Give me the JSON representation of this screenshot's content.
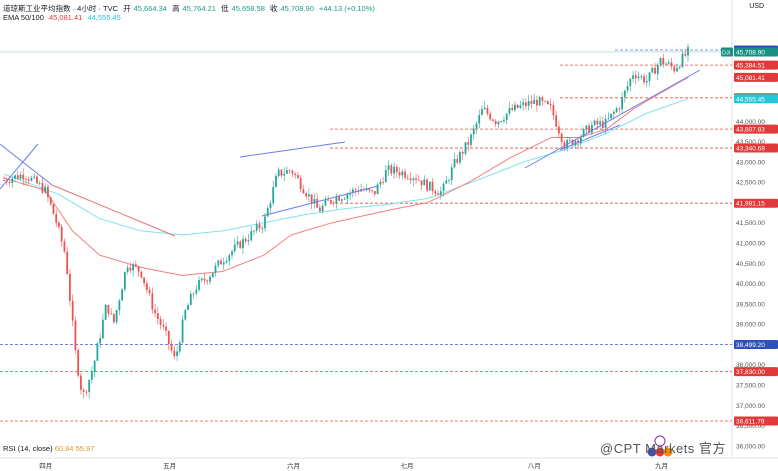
{
  "header": {
    "symbol_line": "道琼斯工业平均指数 · 4小时 · TVC",
    "open_label": "开",
    "open": "45,664.34",
    "high_label": "高",
    "high": "45,764.21",
    "low_label": "低",
    "low": "45,658.58",
    "close_label": "收",
    "close": "45,708.90",
    "change": "+44.13 (+0.10%)",
    "ema_label": "EMA 50/100",
    "ema50": "45,081.41",
    "ema100": "44,555.45"
  },
  "currency": "USD",
  "rsi": {
    "label": "RSI (14, close)",
    "v1": "60.84",
    "v2": "55.97"
  },
  "watermark": "@CPT Markets 官方",
  "colors": {
    "up": "#26a69a",
    "down": "#ef5350",
    "ema50": "#f08080",
    "ema100": "#7fe3ec",
    "trend": "#6c7ee8",
    "level": "#e74c3c"
  },
  "chart_data": {
    "type": "candlestick",
    "x_ticks": [
      "四月",
      "五月",
      "六月",
      "七月",
      "八月",
      "九月"
    ],
    "y_ticks": [
      44000,
      43500,
      43000,
      42500,
      42000,
      41500,
      41000,
      40500,
      40000,
      39500,
      39000,
      38500,
      38000,
      37500,
      37000,
      36500,
      36000
    ],
    "y_tick_labels": [
      "44,000.00",
      "43,500.00",
      "43,000.00",
      "42,500.00",
      "42,000.00",
      "41,500.00",
      "41,000.00",
      "40,500.00",
      "40,000.00",
      "39,500.00",
      "39,000.00",
      "38,500.00",
      "38,000.00",
      "37,500.00",
      "37,000.00",
      "36,500.00",
      "36,000.00"
    ],
    "ylim": [
      35700,
      46300
    ],
    "price_levels": [
      {
        "value": 45757.85,
        "label": "45,757.85",
        "style": "blue"
      },
      {
        "value": 45708.9,
        "label": "45,708.90",
        "style": "current",
        "tag": "DJI"
      },
      {
        "value": 45384.51,
        "label": "45,384.51",
        "style": "red"
      },
      {
        "value": 45081.41,
        "label": "45,081.41",
        "style": "ema50"
      },
      {
        "value": 44579.2,
        "label": "44,579.20",
        "style": "red"
      },
      {
        "value": 44555.45,
        "label": "44,555.45",
        "style": "ema100"
      },
      {
        "value": 43807.83,
        "label": "43,807.83",
        "style": "red"
      },
      {
        "value": 43340.69,
        "label": "43,340.69",
        "style": "red"
      },
      {
        "value": 41981.15,
        "label": "41,981.15",
        "style": "red"
      },
      {
        "value": 38499.2,
        "label": "38,499.20",
        "style": "blue"
      },
      {
        "value": 37830.0,
        "label": "37,830.00",
        "style": "red"
      },
      {
        "value": 36611.79,
        "label": "36,611.79",
        "style": "red"
      }
    ],
    "close_path": [
      [
        0,
        42550
      ],
      [
        0.03,
        42700
      ],
      [
        0.06,
        42300
      ],
      [
        0.075,
        41600
      ],
      [
        0.09,
        40700
      ],
      [
        0.105,
        38200
      ],
      [
        0.115,
        37200
      ],
      [
        0.13,
        37900
      ],
      [
        0.15,
        39500
      ],
      [
        0.16,
        39000
      ],
      [
        0.18,
        40500
      ],
      [
        0.2,
        40300
      ],
      [
        0.22,
        39300
      ],
      [
        0.235,
        38800
      ],
      [
        0.25,
        38100
      ],
      [
        0.265,
        39300
      ],
      [
        0.28,
        39900
      ],
      [
        0.3,
        40200
      ],
      [
        0.32,
        40600
      ],
      [
        0.34,
        40900
      ],
      [
        0.36,
        41200
      ],
      [
        0.38,
        41500
      ],
      [
        0.4,
        42700
      ],
      [
        0.42,
        42800
      ],
      [
        0.44,
        42300
      ],
      [
        0.46,
        41800
      ],
      [
        0.48,
        42100
      ],
      [
        0.5,
        42200
      ],
      [
        0.52,
        42350
      ],
      [
        0.54,
        42200
      ],
      [
        0.56,
        42800
      ],
      [
        0.58,
        42750
      ],
      [
        0.6,
        42650
      ],
      [
        0.62,
        42400
      ],
      [
        0.64,
        42250
      ],
      [
        0.66,
        43000
      ],
      [
        0.68,
        43500
      ],
      [
        0.7,
        44300
      ],
      [
        0.72,
        44000
      ],
      [
        0.74,
        44250
      ],
      [
        0.76,
        44400
      ],
      [
        0.78,
        44500
      ],
      [
        0.8,
        44300
      ],
      [
        0.82,
        43400
      ],
      [
        0.84,
        43600
      ],
      [
        0.86,
        43900
      ],
      [
        0.88,
        43950
      ],
      [
        0.9,
        44400
      ],
      [
        0.92,
        45200
      ],
      [
        0.94,
        45000
      ],
      [
        0.96,
        45500
      ],
      [
        0.98,
        45300
      ],
      [
        1.0,
        45709
      ]
    ],
    "ema50": [
      [
        0,
        42600
      ],
      [
        0.06,
        42300
      ],
      [
        0.1,
        41300
      ],
      [
        0.14,
        40700
      ],
      [
        0.2,
        40400
      ],
      [
        0.26,
        40200
      ],
      [
        0.32,
        40300
      ],
      [
        0.38,
        40700
      ],
      [
        0.42,
        41200
      ],
      [
        0.48,
        41500
      ],
      [
        0.56,
        41800
      ],
      [
        0.62,
        42000
      ],
      [
        0.68,
        42500
      ],
      [
        0.74,
        43100
      ],
      [
        0.8,
        43600
      ],
      [
        0.84,
        43600
      ],
      [
        0.88,
        43800
      ],
      [
        0.92,
        44300
      ],
      [
        0.96,
        44700
      ],
      [
        1.0,
        45081
      ]
    ],
    "ema100": [
      [
        0,
        42700
      ],
      [
        0.08,
        42200
      ],
      [
        0.14,
        41600
      ],
      [
        0.2,
        41300
      ],
      [
        0.26,
        41200
      ],
      [
        0.32,
        41300
      ],
      [
        0.38,
        41500
      ],
      [
        0.44,
        41700
      ],
      [
        0.5,
        41850
      ],
      [
        0.56,
        41950
      ],
      [
        0.62,
        42100
      ],
      [
        0.7,
        42600
      ],
      [
        0.76,
        43000
      ],
      [
        0.82,
        43300
      ],
      [
        0.88,
        43700
      ],
      [
        0.94,
        44200
      ],
      [
        1.0,
        44555
      ]
    ]
  }
}
